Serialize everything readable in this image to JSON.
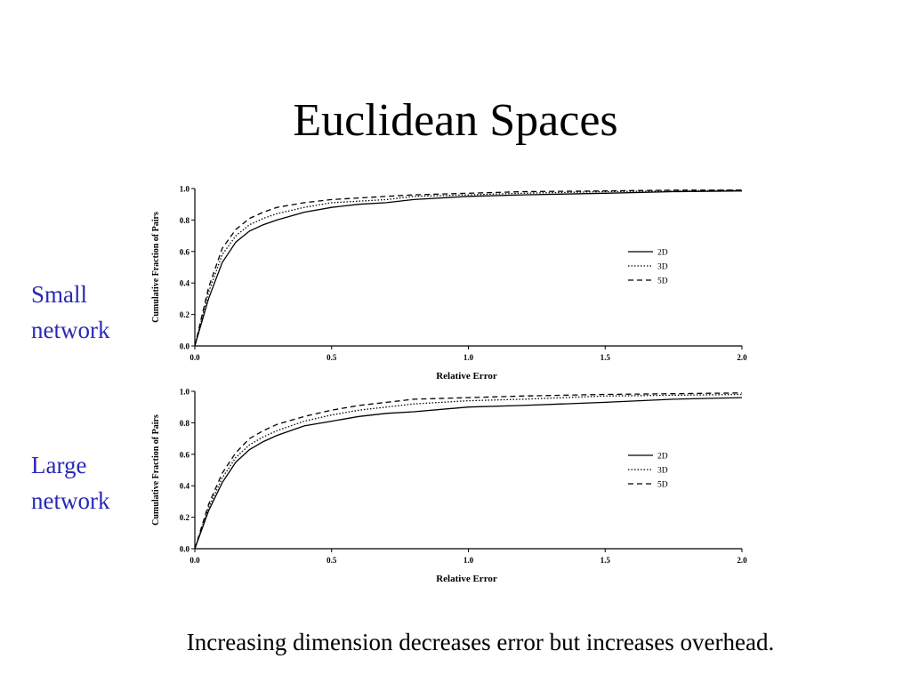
{
  "slide": {
    "title": "Euclidean Spaces",
    "footer": "Increasing dimension decreases error but increases overhead."
  },
  "side_labels": {
    "small": [
      "Small",
      "network"
    ],
    "large": [
      "Large",
      "network"
    ]
  },
  "colors": {
    "side_label": "#2929b8",
    "line": "#000000"
  },
  "chart_data": [
    {
      "type": "line",
      "panel": "Small network",
      "xlabel": "Relative Error",
      "ylabel": "Cumulative Fraction of Pairs",
      "xlim": [
        0,
        2
      ],
      "ylim": [
        0,
        1
      ],
      "xticks": [
        "0.0",
        "0.5",
        "1.0",
        "1.5",
        "2.0"
      ],
      "yticks": [
        "0.0",
        "0.2",
        "0.4",
        "0.6",
        "0.8",
        "1.0"
      ],
      "legend_position": "right",
      "x": [
        0,
        0.05,
        0.1,
        0.15,
        0.2,
        0.25,
        0.3,
        0.4,
        0.5,
        0.6,
        0.7,
        0.8,
        1.0,
        1.2,
        1.5,
        1.75,
        2.0
      ],
      "series": [
        {
          "name": "2D",
          "style": "solid",
          "values": [
            0,
            0.3,
            0.53,
            0.66,
            0.73,
            0.77,
            0.8,
            0.85,
            0.88,
            0.9,
            0.91,
            0.93,
            0.95,
            0.96,
            0.97,
            0.98,
            0.985
          ]
        },
        {
          "name": "3D",
          "style": "dotted",
          "values": [
            0,
            0.34,
            0.58,
            0.7,
            0.77,
            0.81,
            0.84,
            0.88,
            0.91,
            0.92,
            0.93,
            0.95,
            0.96,
            0.97,
            0.98,
            0.985,
            0.99
          ]
        },
        {
          "name": "5D",
          "style": "dashed",
          "values": [
            0,
            0.37,
            0.62,
            0.74,
            0.81,
            0.85,
            0.88,
            0.91,
            0.93,
            0.94,
            0.95,
            0.96,
            0.97,
            0.98,
            0.985,
            0.99,
            0.99
          ]
        }
      ]
    },
    {
      "type": "line",
      "panel": "Large network",
      "xlabel": "Relative Error",
      "ylabel": "Cumulative Fraction of Pairs",
      "xlim": [
        0,
        2
      ],
      "ylim": [
        0,
        1
      ],
      "xticks": [
        "0.0",
        "0.5",
        "1.0",
        "1.5",
        "2.0"
      ],
      "yticks": [
        "0.0",
        "0.2",
        "0.4",
        "0.6",
        "0.8",
        "1.0"
      ],
      "legend_position": "right",
      "x": [
        0,
        0.05,
        0.1,
        0.15,
        0.2,
        0.25,
        0.3,
        0.4,
        0.5,
        0.6,
        0.7,
        0.8,
        1.0,
        1.2,
        1.5,
        1.75,
        2.0
      ],
      "series": [
        {
          "name": "2D",
          "style": "solid",
          "values": [
            0,
            0.24,
            0.42,
            0.55,
            0.63,
            0.68,
            0.72,
            0.78,
            0.81,
            0.84,
            0.86,
            0.87,
            0.9,
            0.91,
            0.93,
            0.95,
            0.96
          ]
        },
        {
          "name": "3D",
          "style": "dotted",
          "values": [
            0,
            0.26,
            0.45,
            0.58,
            0.66,
            0.71,
            0.75,
            0.81,
            0.85,
            0.88,
            0.9,
            0.92,
            0.94,
            0.95,
            0.97,
            0.975,
            0.98
          ]
        },
        {
          "name": "5D",
          "style": "dashed",
          "values": [
            0,
            0.28,
            0.48,
            0.61,
            0.7,
            0.75,
            0.79,
            0.84,
            0.88,
            0.91,
            0.93,
            0.95,
            0.96,
            0.97,
            0.98,
            0.985,
            0.99
          ]
        }
      ]
    }
  ]
}
